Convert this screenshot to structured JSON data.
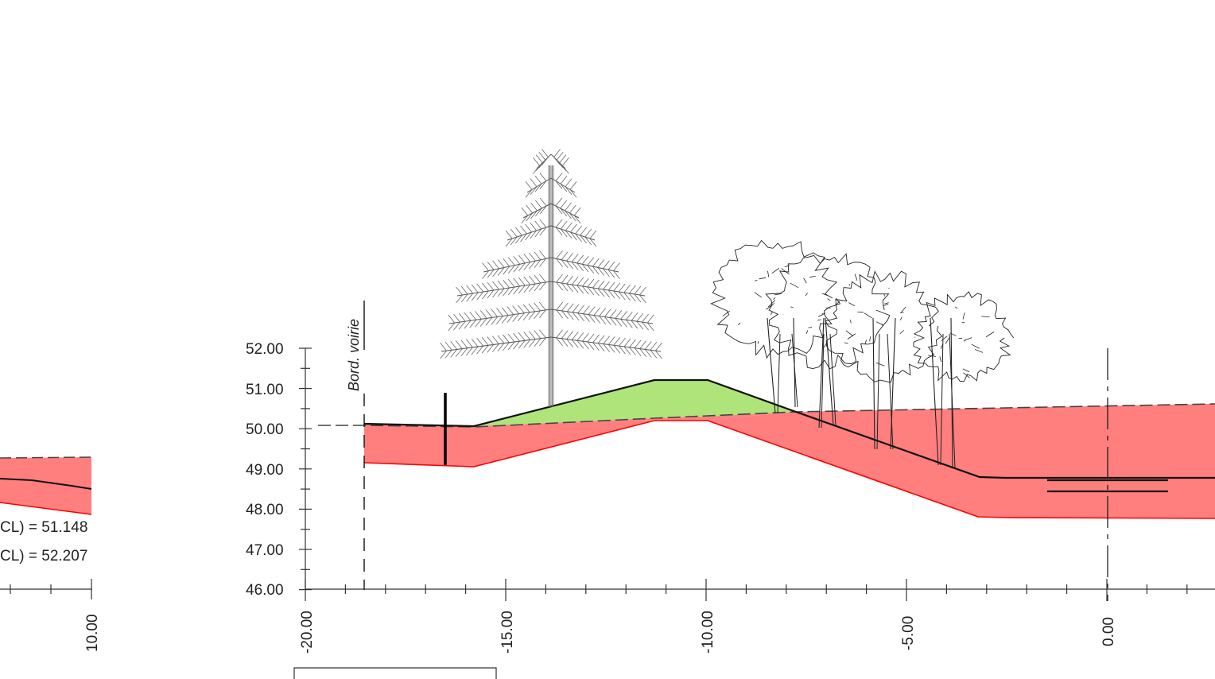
{
  "main_section": {
    "y_axis_ticks": [
      "52.00",
      "51.00",
      "50.00",
      "49.00",
      "48.00",
      "47.00",
      "46.00"
    ],
    "x_axis_ticks": [
      "-20.00",
      "-15.00",
      "-10.00",
      "-5.00",
      "0.00"
    ],
    "road_edge_label": "Bord. voirie"
  },
  "left_section": {
    "annotations": [
      "CL) = 51.148",
      "CL) = 52.207"
    ],
    "x_axis_ticks": [
      "10.00"
    ]
  },
  "colors": {
    "cut_fill": "#ff7f7f",
    "cut_line": "#ff0000",
    "embankment_fill": "#aee47a",
    "ground_line": "#111111",
    "axis": "#333333"
  },
  "icons": [
    "conifer-tree-icon",
    "deciduous-tree-cluster-icon"
  ]
}
